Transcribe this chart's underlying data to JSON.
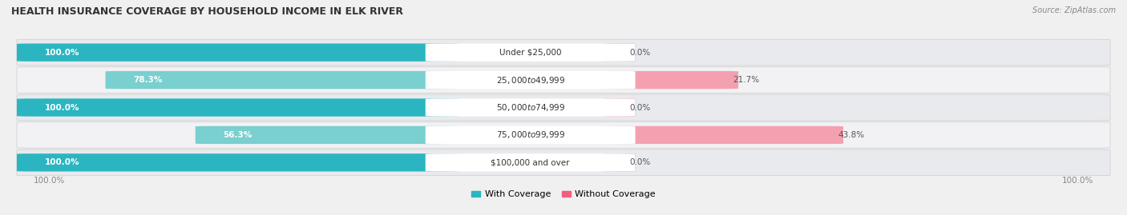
{
  "title": "HEALTH INSURANCE COVERAGE BY HOUSEHOLD INCOME IN ELK RIVER",
  "source": "Source: ZipAtlas.com",
  "categories": [
    "Under $25,000",
    "$25,000 to $49,999",
    "$50,000 to $74,999",
    "$75,000 to $99,999",
    "$100,000 and over"
  ],
  "with_coverage": [
    100.0,
    78.3,
    100.0,
    56.3,
    100.0
  ],
  "without_coverage": [
    0.0,
    21.7,
    0.0,
    43.8,
    0.0
  ],
  "color_with_bright": "#2bb5c0",
  "color_with_light": "#7acfcf",
  "color_without_bright": "#f06080",
  "color_without_light": "#f4a0b0",
  "bg_color": "#f0f0f0",
  "bar_bg": "#e0e0e0",
  "legend_with": "With Coverage",
  "legend_without": "Without Coverage",
  "bar_height": 0.62,
  "label_pill_color": "#ffffff",
  "pct_label_color_white": "#ffffff",
  "pct_label_color_dark": "#555555",
  "row_bg_colors": [
    "#e8e8ee",
    "#f5f5f5",
    "#e8e8ee",
    "#f5f5f5",
    "#e8e8ee"
  ]
}
